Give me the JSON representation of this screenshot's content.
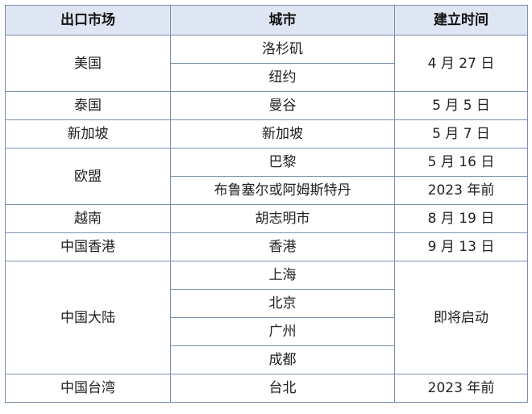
{
  "table": {
    "headers": [
      "出口市场",
      "城市",
      "建立时间"
    ],
    "rows": [
      {
        "market": "美国",
        "cities": [
          "洛杉矶",
          "纽约"
        ],
        "times": [
          "4 月 27 日"
        ]
      },
      {
        "market": "泰国",
        "cities": [
          "曼谷"
        ],
        "times": [
          "5 月 5 日"
        ]
      },
      {
        "market": "新加坡",
        "cities": [
          "新加坡"
        ],
        "times": [
          "5 月 7 日"
        ]
      },
      {
        "market": "欧盟",
        "cities": [
          "巴黎",
          "布鲁塞尔或阿姆斯特丹"
        ],
        "times": [
          "5 月 16 日",
          "2023 年前"
        ]
      },
      {
        "market": "越南",
        "cities": [
          "胡志明市"
        ],
        "times": [
          "8 月 19 日"
        ]
      },
      {
        "market": "中国香港",
        "cities": [
          "香港"
        ],
        "times": [
          "9 月 13 日"
        ]
      },
      {
        "market": "中国大陆",
        "cities": [
          "上海",
          "北京",
          "广州",
          "成都"
        ],
        "times": [
          "即将启动"
        ]
      },
      {
        "market": "中国台湾",
        "cities": [
          "台北"
        ],
        "times": [
          "2023 年前"
        ]
      }
    ]
  },
  "colors": {
    "header_bg": "#dfe6f3",
    "border": "#7d8fb0",
    "text": "#222222"
  }
}
